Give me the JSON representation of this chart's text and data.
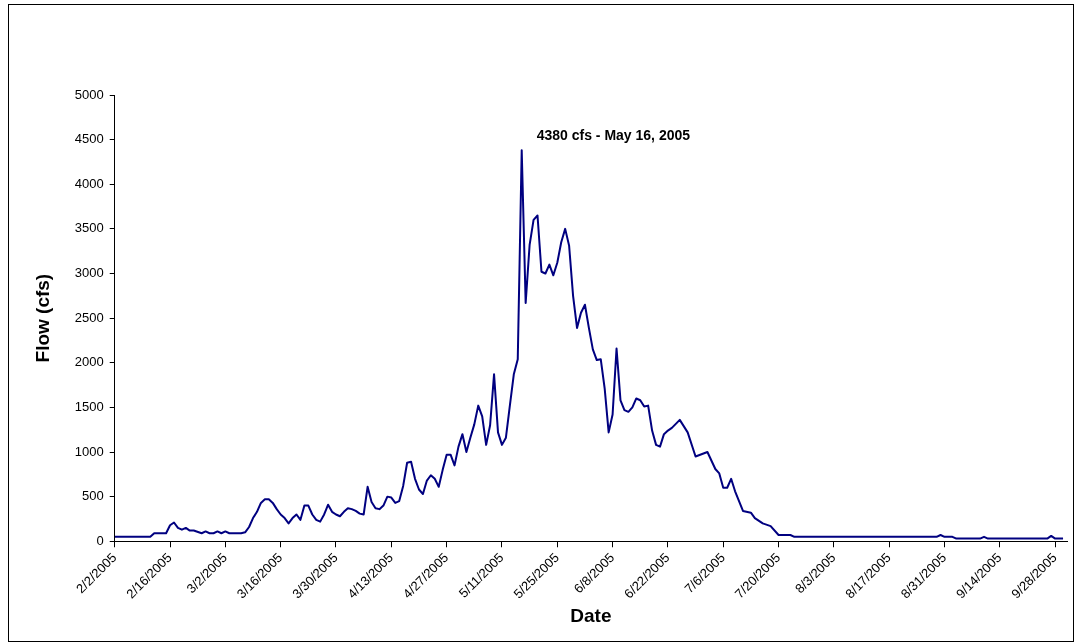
{
  "chart_data": {
    "type": "line",
    "xlabel": "Date",
    "ylabel": "Flow (cfs)",
    "annotations": [
      {
        "text": "4380 cfs - May 16, 2005",
        "x": "2005-05-16",
        "y": 4380
      }
    ],
    "xlim": [
      "2005-02-02",
      "2005-10-01"
    ],
    "xticks": [
      {
        "value": "2005-02-02",
        "label": "2/2/2005"
      },
      {
        "value": "2005-02-16",
        "label": "2/16/2005"
      },
      {
        "value": "2005-03-02",
        "label": "3/2/2005"
      },
      {
        "value": "2005-03-16",
        "label": "3/16/2005"
      },
      {
        "value": "2005-03-30",
        "label": "3/30/2005"
      },
      {
        "value": "2005-04-13",
        "label": "4/13/2005"
      },
      {
        "value": "2005-04-27",
        "label": "4/27/2005"
      },
      {
        "value": "2005-05-11",
        "label": "5/11/2005"
      },
      {
        "value": "2005-05-25",
        "label": "5/25/2005"
      },
      {
        "value": "2005-06-08",
        "label": "6/8/2005"
      },
      {
        "value": "2005-06-22",
        "label": "6/22/2005"
      },
      {
        "value": "2005-07-06",
        "label": "7/6/2005"
      },
      {
        "value": "2005-07-20",
        "label": "7/20/2005"
      },
      {
        "value": "2005-08-03",
        "label": "8/3/2005"
      },
      {
        "value": "2005-08-17",
        "label": "8/17/2005"
      },
      {
        "value": "2005-08-31",
        "label": "8/31/2005"
      },
      {
        "value": "2005-09-14",
        "label": "9/14/2005"
      },
      {
        "value": "2005-09-28",
        "label": "9/28/2005"
      }
    ],
    "ylim": [
      0,
      5000
    ],
    "yticks": [
      0,
      500,
      1000,
      1500,
      2000,
      2500,
      3000,
      3500,
      4000,
      4500,
      5000
    ],
    "grid": false,
    "legend": false,
    "marker": "none",
    "line_style": "solid",
    "x": [
      "2005-02-02",
      "2005-02-11",
      "2005-02-12",
      "2005-02-15",
      "2005-02-16",
      "2005-02-17",
      "2005-02-18",
      "2005-02-19",
      "2005-02-20",
      "2005-02-21",
      "2005-02-22",
      "2005-02-24",
      "2005-02-25",
      "2005-02-26",
      "2005-02-27",
      "2005-02-28",
      "2005-03-01",
      "2005-03-02",
      "2005-03-03",
      "2005-03-06",
      "2005-03-07",
      "2005-03-08",
      "2005-03-09",
      "2005-03-10",
      "2005-03-11",
      "2005-03-12",
      "2005-03-13",
      "2005-03-14",
      "2005-03-15",
      "2005-03-16",
      "2005-03-17",
      "2005-03-18",
      "2005-03-19",
      "2005-03-20",
      "2005-03-21",
      "2005-03-22",
      "2005-03-23",
      "2005-03-24",
      "2005-03-25",
      "2005-03-26",
      "2005-03-27",
      "2005-03-28",
      "2005-03-29",
      "2005-03-30",
      "2005-03-31",
      "2005-04-01",
      "2005-04-02",
      "2005-04-03",
      "2005-04-04",
      "2005-04-05",
      "2005-04-06",
      "2005-04-07",
      "2005-04-08",
      "2005-04-09",
      "2005-04-10",
      "2005-04-11",
      "2005-04-12",
      "2005-04-13",
      "2005-04-14",
      "2005-04-15",
      "2005-04-16",
      "2005-04-17",
      "2005-04-18",
      "2005-04-19",
      "2005-04-20",
      "2005-04-21",
      "2005-04-22",
      "2005-04-23",
      "2005-04-24",
      "2005-04-25",
      "2005-04-26",
      "2005-04-27",
      "2005-04-28",
      "2005-04-29",
      "2005-04-30",
      "2005-05-01",
      "2005-05-02",
      "2005-05-03",
      "2005-05-04",
      "2005-05-05",
      "2005-05-06",
      "2005-05-07",
      "2005-05-08",
      "2005-05-09",
      "2005-05-10",
      "2005-05-11",
      "2005-05-12",
      "2005-05-13",
      "2005-05-14",
      "2005-05-15",
      "2005-05-16",
      "2005-05-17",
      "2005-05-18",
      "2005-05-19",
      "2005-05-20",
      "2005-05-21",
      "2005-05-22",
      "2005-05-23",
      "2005-05-24",
      "2005-05-25",
      "2005-05-26",
      "2005-05-27",
      "2005-05-28",
      "2005-05-29",
      "2005-05-30",
      "2005-05-31",
      "2005-06-01",
      "2005-06-02",
      "2005-06-03",
      "2005-06-04",
      "2005-06-05",
      "2005-06-06",
      "2005-06-07",
      "2005-06-08",
      "2005-06-09",
      "2005-06-10",
      "2005-06-11",
      "2005-06-12",
      "2005-06-13",
      "2005-06-14",
      "2005-06-15",
      "2005-06-16",
      "2005-06-17",
      "2005-06-18",
      "2005-06-19",
      "2005-06-20",
      "2005-06-21",
      "2005-06-22",
      "2005-06-23",
      "2005-06-25",
      "2005-06-27",
      "2005-06-29",
      "2005-07-02",
      "2005-07-04",
      "2005-07-05",
      "2005-07-06",
      "2005-07-07",
      "2005-07-08",
      "2005-07-09",
      "2005-07-11",
      "2005-07-13",
      "2005-07-14",
      "2005-07-16",
      "2005-07-18",
      "2005-07-20",
      "2005-07-23",
      "2005-07-24",
      "2005-08-29",
      "2005-08-30",
      "2005-08-31",
      "2005-09-02",
      "2005-09-03",
      "2005-09-09",
      "2005-09-10",
      "2005-09-11",
      "2005-09-26",
      "2005-09-27",
      "2005-09-28",
      "2005-09-30"
    ],
    "series": [
      {
        "color": "#000080",
        "values": [
          50,
          50,
          90,
          90,
          180,
          210,
          150,
          130,
          150,
          120,
          120,
          90,
          110,
          90,
          90,
          110,
          90,
          110,
          90,
          90,
          100,
          160,
          260,
          330,
          430,
          470,
          470,
          430,
          360,
          300,
          260,
          200,
          260,
          300,
          240,
          400,
          400,
          300,
          240,
          220,
          300,
          410,
          330,
          300,
          280,
          330,
          370,
          360,
          340,
          310,
          300,
          610,
          440,
          370,
          360,
          400,
          500,
          490,
          430,
          450,
          620,
          880,
          890,
          700,
          580,
          530,
          680,
          740,
          700,
          610,
          800,
          970,
          970,
          850,
          1060,
          1200,
          1000,
          1160,
          1310,
          1520,
          1400,
          1080,
          1300,
          1870,
          1220,
          1080,
          1160,
          1520,
          1870,
          2040,
          4380,
          2670,
          3320,
          3600,
          3650,
          3020,
          3000,
          3100,
          2980,
          3120,
          3350,
          3500,
          3310,
          2750,
          2390,
          2560,
          2650,
          2390,
          2150,
          2030,
          2040,
          1710,
          1220,
          1420,
          2160,
          1580,
          1470,
          1450,
          1500,
          1600,
          1580,
          1510,
          1520,
          1240,
          1080,
          1060,
          1200,
          1240,
          1270,
          1360,
          1220,
          950,
          1000,
          810,
          760,
          600,
          600,
          700,
          560,
          340,
          320,
          260,
          200,
          170,
          70,
          70,
          50,
          50,
          70,
          50,
          50,
          30,
          30,
          50,
          30,
          30,
          60,
          30,
          30
        ]
      }
    ]
  }
}
